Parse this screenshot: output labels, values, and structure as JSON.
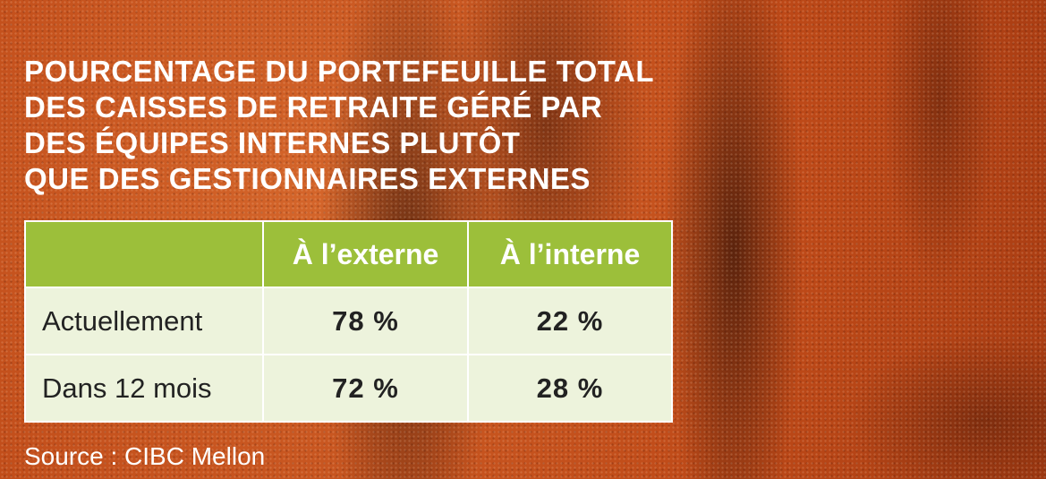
{
  "title_lines": [
    "POURCENTAGE DU PORTEFEUILLE TOTAL",
    "DES CAISSES DE RETRAITE GÉRÉ PAR",
    "DES ÉQUIPES INTERNES PLUTÔT",
    "QUE DES GESTIONNAIRES EXTERNES"
  ],
  "source": "Source : CIBC Mellon",
  "colors": {
    "header_bg": "#9cbf3a",
    "cell_bg": "#edf3dc",
    "background": "#c8521c"
  },
  "chart_data": {
    "type": "table",
    "columns": [
      "",
      "À l’externe",
      "À l’interne"
    ],
    "rows": [
      {
        "label": "Actuellement",
        "values": [
          "78 %",
          "22 %"
        ]
      },
      {
        "label": "Dans 12 mois",
        "values": [
          "72 %",
          "28 %"
        ]
      }
    ]
  }
}
